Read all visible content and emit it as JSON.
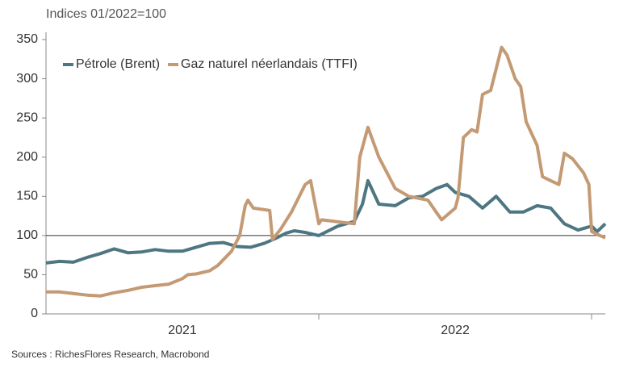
{
  "chart_data": {
    "type": "line",
    "axis_label": "Indices 01/2022=100",
    "source": "Sources : RichesFlores Research, Macrobond",
    "xlim": [
      2021,
      2023.05
    ],
    "xticks": [
      {
        "value": 2021.5,
        "label": "2021"
      },
      {
        "value": 2022.5,
        "label": "2022"
      }
    ],
    "ylim": [
      0,
      350
    ],
    "yticks": [
      0,
      50,
      100,
      150,
      200,
      250,
      300,
      350
    ],
    "reference_line": 100,
    "legend": "top-left",
    "series": [
      {
        "name": "Pétrole (Brent)",
        "color": "#4e7682",
        "x": [
          2021.0,
          2021.05,
          2021.1,
          2021.15,
          2021.2,
          2021.25,
          2021.3,
          2021.35,
          2021.4,
          2021.45,
          2021.5,
          2021.55,
          2021.6,
          2021.65,
          2021.7,
          2021.75,
          2021.8,
          2021.84,
          2021.88,
          2021.91,
          2021.95,
          2022.0,
          2022.07,
          2022.13,
          2022.16,
          2022.18,
          2022.22,
          2022.28,
          2022.33,
          2022.38,
          2022.43,
          2022.47,
          2022.5,
          2022.55,
          2022.6,
          2022.65,
          2022.7,
          2022.75,
          2022.8,
          2022.85,
          2022.9,
          2022.95,
          2023.0,
          2023.02,
          2023.05
        ],
        "values": [
          65,
          67,
          66,
          72,
          77,
          83,
          78,
          79,
          82,
          80,
          80,
          85,
          90,
          91,
          86,
          85,
          90,
          96,
          103,
          106,
          104,
          100,
          112,
          118,
          140,
          170,
          140,
          138,
          148,
          150,
          160,
          165,
          155,
          150,
          135,
          150,
          130,
          130,
          138,
          135,
          115,
          107,
          112,
          105,
          115
        ]
      },
      {
        "name": "Gaz naturel néerlandais (TTFI)",
        "color": "#c49a74",
        "x": [
          2021.0,
          2021.05,
          2021.1,
          2021.15,
          2021.2,
          2021.25,
          2021.3,
          2021.35,
          2021.4,
          2021.45,
          2021.5,
          2021.52,
          2021.55,
          2021.6,
          2021.63,
          2021.68,
          2021.71,
          2021.73,
          2021.74,
          2021.76,
          2021.82,
          2021.83,
          2021.86,
          2021.9,
          2021.95,
          2021.97,
          2022.0,
          2022.01,
          2022.13,
          2022.15,
          2022.18,
          2022.22,
          2022.28,
          2022.33,
          2022.4,
          2022.43,
          2022.45,
          2022.5,
          2022.51,
          2022.53,
          2022.56,
          2022.58,
          2022.6,
          2022.63,
          2022.67,
          2022.69,
          2022.72,
          2022.74,
          2022.76,
          2022.8,
          2022.82,
          2022.85,
          2022.88,
          2022.9,
          2022.93,
          2022.97,
          2022.99,
          2023.0,
          2023.03,
          2023.05
        ],
        "values": [
          28,
          28,
          26,
          24,
          23,
          27,
          30,
          34,
          36,
          38,
          45,
          50,
          51,
          55,
          62,
          80,
          100,
          138,
          145,
          135,
          132,
          95,
          108,
          130,
          165,
          170,
          115,
          120,
          115,
          200,
          238,
          200,
          160,
          150,
          145,
          130,
          120,
          135,
          148,
          225,
          235,
          232,
          280,
          285,
          340,
          330,
          300,
          290,
          245,
          215,
          175,
          170,
          165,
          205,
          198,
          180,
          165,
          105,
          100,
          97
        ]
      }
    ]
  }
}
